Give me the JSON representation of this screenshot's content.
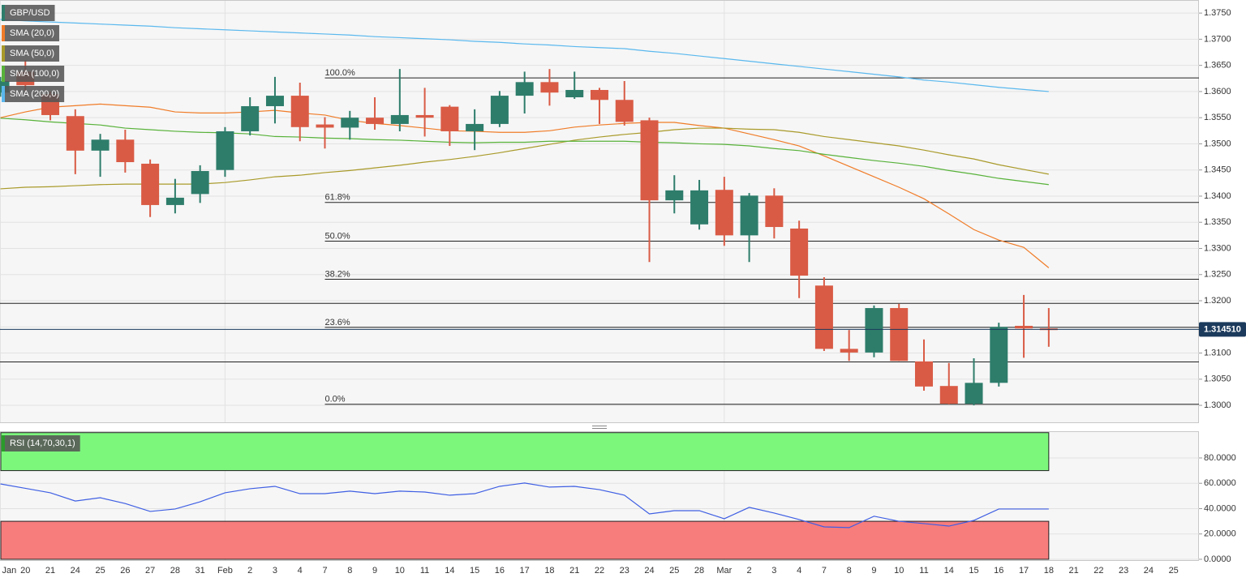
{
  "chart_data": [
    {
      "type": "candlestick",
      "symbol": "GBP/USD",
      "categories": [
        "Jan",
        "20",
        "21",
        "24",
        "25",
        "26",
        "27",
        "28",
        "31",
        "Feb",
        "2",
        "3",
        "4",
        "7",
        "8",
        "9",
        "10",
        "11",
        "14",
        "15",
        "16",
        "17",
        "18",
        "21",
        "22",
        "23",
        "24",
        "25",
        "28",
        "Mar",
        "2",
        "3",
        "4",
        "7",
        "8",
        "9",
        "10",
        "11",
        "14",
        "15",
        "16",
        "17",
        "18",
        "21",
        "22",
        "23",
        "24",
        "25"
      ],
      "open": [
        1.3598,
        1.3638,
        1.3595,
        1.3553,
        1.3487,
        1.3508,
        1.3462,
        1.3383,
        1.3404,
        1.345,
        1.3524,
        1.3572,
        1.3592,
        1.3537,
        1.3531,
        1.355,
        1.3538,
        1.3555,
        1.3571,
        1.3524,
        1.3538,
        1.3592,
        1.3618,
        1.3589,
        1.3603,
        1.3584,
        1.3545,
        1.3392,
        1.3346,
        1.3412,
        1.3325,
        1.3401,
        1.3338,
        1.3229,
        1.3108,
        1.3101,
        1.3186,
        1.3084,
        1.3037,
        1.3003,
        1.3043,
        1.3152,
        1.3147,
        null,
        null,
        null,
        null,
        null
      ],
      "high": [
        1.3628,
        1.366,
        1.36,
        1.3566,
        1.3519,
        1.3527,
        1.347,
        1.3433,
        1.3459,
        1.3532,
        1.3589,
        1.3628,
        1.3617,
        1.3551,
        1.3563,
        1.3589,
        1.3643,
        1.3607,
        1.3574,
        1.3566,
        1.3601,
        1.3638,
        1.3643,
        1.3638,
        1.3607,
        1.362,
        1.355,
        1.344,
        1.3431,
        1.3437,
        1.3406,
        1.3415,
        1.3353,
        1.3245,
        1.3144,
        1.3191,
        1.3194,
        1.3126,
        1.3081,
        1.309,
        1.3158,
        1.3211,
        1.3186,
        null,
        null,
        null,
        null,
        null
      ],
      "low": [
        1.359,
        1.36,
        1.3545,
        1.3442,
        1.3437,
        1.3445,
        1.336,
        1.3367,
        1.3387,
        1.3437,
        1.3516,
        1.3539,
        1.3505,
        1.3491,
        1.3508,
        1.3527,
        1.3524,
        1.3514,
        1.3496,
        1.3488,
        1.3532,
        1.3558,
        1.3573,
        1.3586,
        1.3538,
        1.3535,
        1.3274,
        1.3367,
        1.3336,
        1.3305,
        1.3274,
        1.3319,
        1.3205,
        1.3104,
        1.3085,
        1.3092,
        1.3085,
        1.3028,
        1.3002,
        1.3,
        1.3036,
        1.3091,
        1.3112,
        null,
        null,
        null,
        null,
        null
      ],
      "close": [
        1.362,
        1.3612,
        1.3555,
        1.3487,
        1.3508,
        1.3465,
        1.3383,
        1.3397,
        1.3448,
        1.3524,
        1.3572,
        1.3592,
        1.3532,
        1.3531,
        1.355,
        1.3538,
        1.3555,
        1.355,
        1.3524,
        1.3538,
        1.3592,
        1.3618,
        1.3598,
        1.3603,
        1.3584,
        1.3542,
        1.3392,
        1.3411,
        1.3411,
        1.3325,
        1.3401,
        1.3341,
        1.3248,
        1.3108,
        1.3101,
        1.3186,
        1.3085,
        1.3036,
        1.3003,
        1.3043,
        1.315,
        1.3147,
        1.3145,
        null,
        null,
        null,
        null,
        null
      ],
      "up_color": "#2e7d6b",
      "down_color": "#d95b45",
      "overlays": [
        {
          "name": "SMA (20,0)",
          "color": "#f07c28",
          "values": [
            1.355,
            1.3561,
            1.357,
            1.3573,
            1.3576,
            1.3573,
            1.357,
            1.3561,
            1.3559,
            1.3559,
            1.3561,
            1.3564,
            1.3559,
            1.3555,
            1.3545,
            1.3539,
            1.3535,
            1.353,
            1.3525,
            1.3524,
            1.3522,
            1.3522,
            1.3525,
            1.3532,
            1.3536,
            1.3539,
            1.3541,
            1.3541,
            1.3535,
            1.353,
            1.3519,
            1.3508,
            1.3496,
            1.3477,
            1.3457,
            1.3437,
            1.3417,
            1.3395,
            1.3366,
            1.3336,
            1.3316,
            1.3302,
            1.3263,
            null,
            null,
            null,
            null,
            null
          ]
        },
        {
          "name": "SMA (50,0)",
          "color": "#a99a2a",
          "values": [
            1.3414,
            1.3417,
            1.3418,
            1.342,
            1.3422,
            1.3423,
            1.3423,
            1.3423,
            1.3423,
            1.3426,
            1.3431,
            1.3437,
            1.344,
            1.3445,
            1.3449,
            1.3454,
            1.3459,
            1.3465,
            1.347,
            1.3476,
            1.3483,
            1.3491,
            1.3499,
            1.3507,
            1.3513,
            1.3518,
            1.3522,
            1.3527,
            1.353,
            1.353,
            1.3528,
            1.3527,
            1.3522,
            1.3514,
            1.3508,
            1.3502,
            1.3496,
            1.3488,
            1.3479,
            1.3471,
            1.346,
            1.3451,
            1.3442,
            null,
            null,
            null,
            null,
            null
          ]
        },
        {
          "name": "SMA (100,0)",
          "color": "#58b23a",
          "values": [
            1.3549,
            1.3546,
            1.3542,
            1.3539,
            1.3536,
            1.353,
            1.3527,
            1.3524,
            1.3522,
            1.3521,
            1.3519,
            1.3514,
            1.3513,
            1.3511,
            1.351,
            1.3508,
            1.3507,
            1.3505,
            1.3503,
            1.3502,
            1.3503,
            1.3503,
            1.3505,
            1.3505,
            1.3505,
            1.3505,
            1.3503,
            1.3502,
            1.35,
            1.3499,
            1.3496,
            1.3491,
            1.3487,
            1.348,
            1.3474,
            1.3468,
            1.3463,
            1.3457,
            1.3449,
            1.3442,
            1.3434,
            1.3428,
            1.3422,
            null,
            null,
            null,
            null,
            null
          ]
        },
        {
          "name": "SMA (200,0)",
          "color": "#5ab8ee",
          "values": [
            1.3738,
            1.3735,
            1.3733,
            1.3731,
            1.3729,
            1.3727,
            1.3725,
            1.3722,
            1.372,
            1.3718,
            1.3716,
            1.3714,
            1.3712,
            1.371,
            1.3708,
            1.3705,
            1.3703,
            1.3701,
            1.3699,
            1.3696,
            1.3694,
            1.3691,
            1.3689,
            1.3686,
            1.3684,
            1.3682,
            1.3677,
            1.3673,
            1.3668,
            1.3663,
            1.3658,
            1.3653,
            1.3648,
            1.3643,
            1.3638,
            1.3633,
            1.3628,
            1.3622,
            1.3618,
            1.3613,
            1.3608,
            1.3604,
            1.36,
            null,
            null,
            null,
            null,
            null
          ]
        }
      ],
      "fibonacci": [
        {
          "label": "100.0%",
          "value": 1.3626
        },
        {
          "label": "61.8%",
          "value": 1.3388
        },
        {
          "label": "50.0%",
          "value": 1.3314
        },
        {
          "label": "38.2%",
          "value": 1.3241
        },
        {
          "label": "23.6%",
          "value": 1.3149
        },
        {
          "label": "0.0%",
          "value": 1.3002
        }
      ],
      "levels": [
        1.3195,
        1.3083
      ],
      "last_price": {
        "value": 1.31451,
        "label": "1.314510"
      },
      "ylim": [
        1.2966,
        1.3775
      ],
      "yticks": [
        {
          "value": 1.3,
          "label": "1.3000"
        },
        {
          "value": 1.305,
          "label": "1.3050"
        },
        {
          "value": 1.31,
          "label": "1.3100"
        },
        {
          "value": 1.315,
          "label": "1.3150"
        },
        {
          "value": 1.32,
          "label": "1.3200"
        },
        {
          "value": 1.325,
          "label": "1.3250"
        },
        {
          "value": 1.33,
          "label": "1.3300"
        },
        {
          "value": 1.335,
          "label": "1.3350"
        },
        {
          "value": 1.34,
          "label": "1.3400"
        },
        {
          "value": 1.345,
          "label": "1.3450"
        },
        {
          "value": 1.35,
          "label": "1.3500"
        },
        {
          "value": 1.355,
          "label": "1.3550"
        },
        {
          "value": 1.36,
          "label": "1.3600"
        },
        {
          "value": 1.365,
          "label": "1.3650"
        },
        {
          "value": 1.37,
          "label": "1.3700"
        },
        {
          "value": 1.375,
          "label": "1.3750"
        }
      ],
      "grid": true
    },
    {
      "type": "line",
      "series": [
        {
          "name": "RSI (14,70,30,1)",
          "color": "#3f5fe3",
          "values": [
            59.5,
            56,
            52.5,
            46,
            48.6,
            44,
            37.8,
            39.7,
            45.4,
            52.5,
            55.7,
            57.6,
            51.8,
            51.8,
            53.8,
            51.8,
            53.8,
            53.1,
            50.6,
            51.8,
            57.6,
            60.2,
            57,
            57.6,
            55,
            50.6,
            35.8,
            38.4,
            38.4,
            32,
            41,
            36.5,
            31.4,
            25.6,
            25,
            34,
            30,
            28.2,
            26.2,
            30.7,
            39.7,
            39.7,
            39.7,
            null,
            null,
            null,
            null,
            null
          ]
        }
      ],
      "zones": [
        {
          "from": 70,
          "to": 100,
          "color": "#7cf77c"
        },
        {
          "from": 0,
          "to": 30,
          "color": "#f77c7c"
        }
      ],
      "ylim": [
        -1.3,
        101.1
      ],
      "yticks": [
        {
          "value": 0,
          "label": "0.0000"
        },
        {
          "value": 20,
          "label": "20.0000"
        },
        {
          "value": 40,
          "label": "40.0000"
        },
        {
          "value": 60,
          "label": "60.0000"
        },
        {
          "value": 80,
          "label": "80.0000"
        }
      ],
      "grid": true
    }
  ]
}
